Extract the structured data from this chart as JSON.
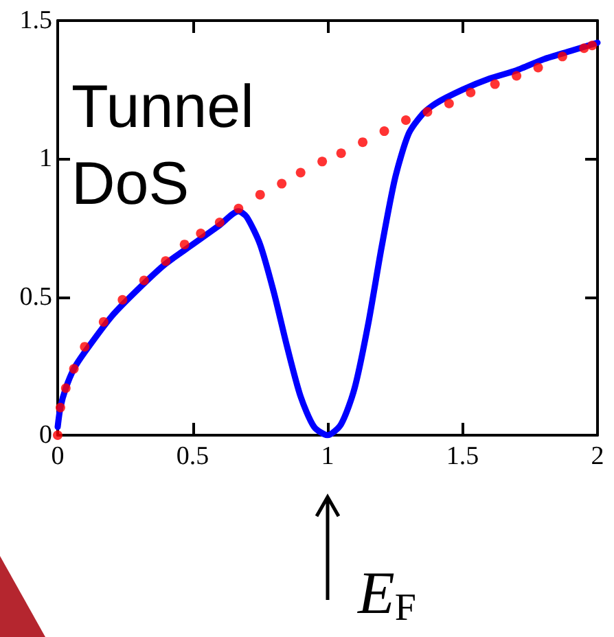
{
  "chart_data": {
    "type": "line",
    "xlim": [
      0,
      2
    ],
    "xticks": [
      0,
      0.5,
      1,
      1.5,
      2
    ],
    "ylim": [
      0,
      1.5
    ],
    "yticks": [
      0,
      0.5,
      1,
      1.5
    ],
    "grid": false,
    "annotations": [
      "Tunnel DoS",
      "E$_{F}$"
    ],
    "series": [
      {
        "type": "scatter",
        "color": "#ff0000",
        "marker": "circle",
        "x": [
          0,
          0.01,
          0.03,
          0.06,
          0.1,
          0.17,
          0.24,
          0.32,
          0.4,
          0.47,
          0.53,
          0.6,
          0.67,
          0.75,
          0.83,
          0.9,
          0.98,
          1.05,
          1.13,
          1.21,
          1.29,
          1.37,
          1.45,
          1.53,
          1.62,
          1.7,
          1.78,
          1.87,
          1.95,
          1.98
        ],
        "values": [
          0,
          0.1,
          0.17,
          0.24,
          0.32,
          0.41,
          0.49,
          0.56,
          0.63,
          0.69,
          0.73,
          0.77,
          0.82,
          0.87,
          0.91,
          0.95,
          0.99,
          1.02,
          1.06,
          1.1,
          1.14,
          1.17,
          1.2,
          1.24,
          1.27,
          1.3,
          1.33,
          1.37,
          1.4,
          1.41
        ]
      },
      {
        "color": "#0000ff",
        "marker": "none",
        "line_style": "solid",
        "x": [
          0,
          0.01,
          0.03,
          0.06,
          0.1,
          0.2,
          0.3,
          0.4,
          0.5,
          0.6,
          0.67,
          0.7,
          0.75,
          0.8,
          0.85,
          0.9,
          0.95,
          1.0,
          1.05,
          1.1,
          1.15,
          1.2,
          1.25,
          1.3,
          1.35,
          1.4,
          1.5,
          1.6,
          1.7,
          1.8,
          1.9,
          2.0
        ],
        "values": [
          0.03,
          0.1,
          0.17,
          0.24,
          0.3,
          0.43,
          0.53,
          0.62,
          0.69,
          0.76,
          0.81,
          0.79,
          0.69,
          0.52,
          0.32,
          0.14,
          0.03,
          0,
          0.04,
          0.17,
          0.4,
          0.68,
          0.93,
          1.09,
          1.16,
          1.2,
          1.25,
          1.29,
          1.32,
          1.36,
          1.39,
          1.42
        ]
      }
    ]
  }
}
